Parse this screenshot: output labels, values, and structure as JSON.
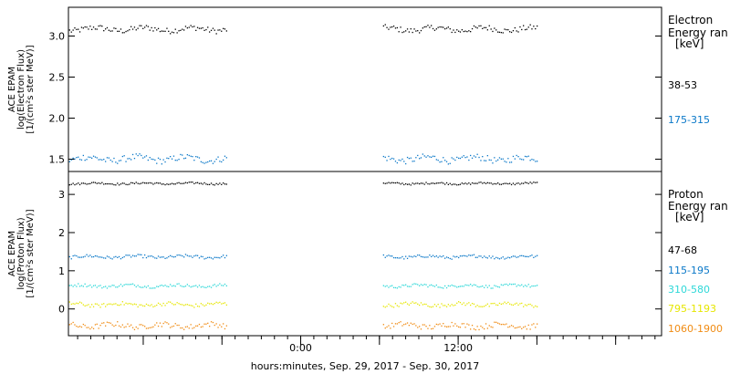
{
  "figure": {
    "xlabel": "hours:minutes, Sep. 29, 2017 - Sep. 30, 2017",
    "xticks": [
      {
        "label": "0:00",
        "hour": 24
      },
      {
        "label": "12:00",
        "hour": 36
      }
    ]
  },
  "chart_data": [
    {
      "type": "scatter",
      "title": "",
      "ylabel_lines": [
        "ACE EPAM",
        "log(Electron Flux)",
        "[1/(cm²s ster MeV)]"
      ],
      "legend_title_lines": [
        "Electron",
        "Energy ran",
        "[keV]"
      ],
      "x_unit": "hours since Sep. 29, 2017 00:00",
      "xlim": [
        6.3,
        51.5
      ],
      "ylim": [
        1.35,
        3.35
      ],
      "yticks": [
        1.5,
        2.0,
        2.5,
        3.0
      ],
      "ytick_labels": [
        "1.5",
        "2.0",
        "2.5",
        "3.0"
      ],
      "gaps": [
        [
          18.4,
          30.2
        ]
      ],
      "data_x_range": [
        6.3,
        42.0
      ],
      "series": [
        {
          "name": "38-53",
          "color": "#000000",
          "mean": 3.09,
          "spread": 0.035
        },
        {
          "name": "175-315",
          "color": "#0a78c8",
          "mean": 1.51,
          "spread": 0.04
        }
      ]
    },
    {
      "type": "scatter",
      "title": "",
      "ylabel_lines": [
        "ACE EPAM",
        "log(Proton Flux)",
        "[1/(cm²s ster MeV)]"
      ],
      "legend_title_lines": [
        "Proton",
        "Energy ran",
        "[keV]"
      ],
      "x_unit": "hours since Sep. 29, 2017 00:00",
      "xlim": [
        6.3,
        51.5
      ],
      "ylim": [
        -0.7,
        3.6
      ],
      "yticks": [
        0,
        1,
        2,
        3
      ],
      "ytick_labels": [
        "0",
        "1",
        "2",
        "3"
      ],
      "gaps": [
        [
          18.4,
          30.2
        ]
      ],
      "data_x_range": [
        6.3,
        42.0
      ],
      "series": [
        {
          "name": "47-68",
          "color": "#000000",
          "mean": 3.3,
          "spread": 0.025
        },
        {
          "name": "115-195",
          "color": "#0a78c8",
          "mean": 1.38,
          "spread": 0.04
        },
        {
          "name": "310-580",
          "color": "#2ed8d8",
          "mean": 0.62,
          "spread": 0.04
        },
        {
          "name": "795-1193",
          "color": "#e6e600",
          "mean": 0.13,
          "spread": 0.05
        },
        {
          "name": "1060-1900",
          "color": "#f08c14",
          "mean": -0.42,
          "spread": 0.07
        }
      ]
    }
  ]
}
